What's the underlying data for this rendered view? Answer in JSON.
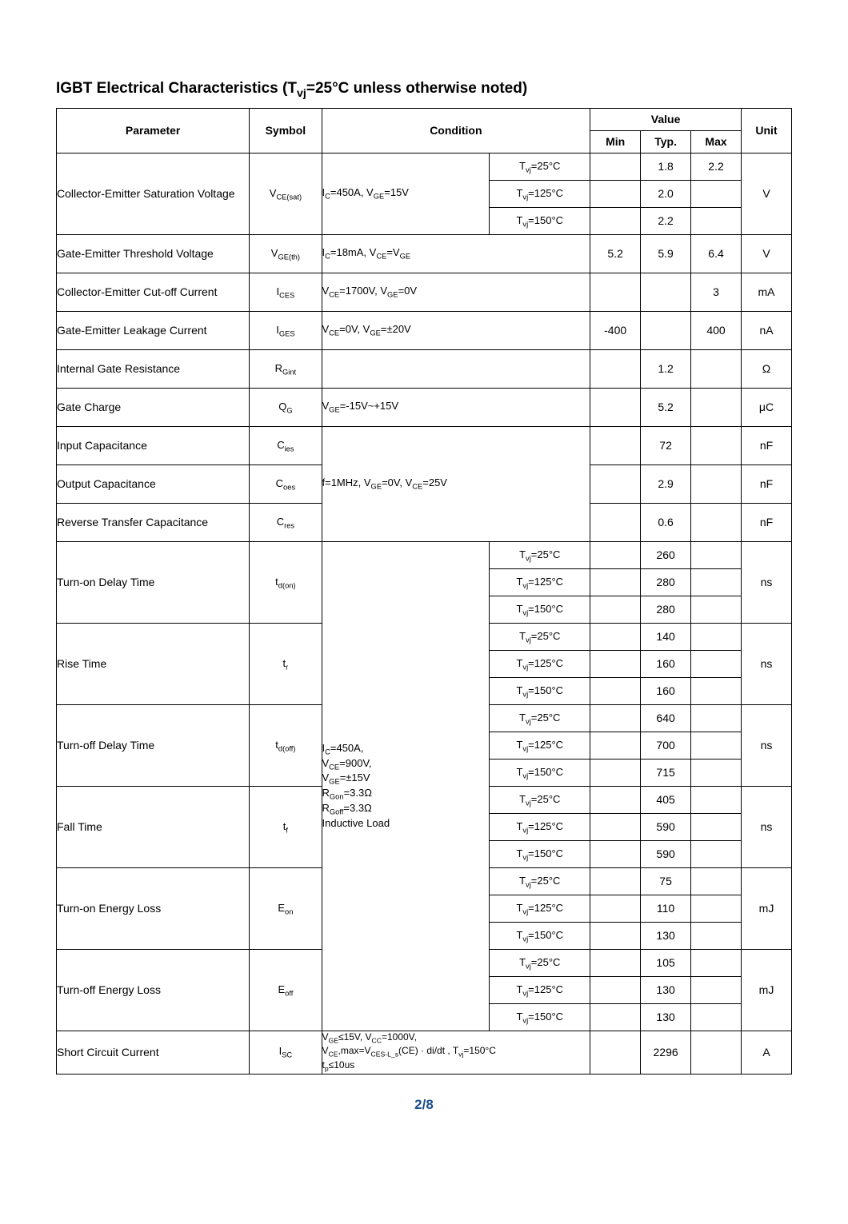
{
  "title_main": "IGBT Electrical Characteristics (T",
  "title_sub": "vj",
  "title_tail": "=25°C unless otherwise noted)",
  "headers": {
    "parameter": "Parameter",
    "symbol": "Symbol",
    "condition": "Condition",
    "value": "Value",
    "min": "Min",
    "typ": "Typ.",
    "max": "Max",
    "unit": "Unit"
  },
  "temps": {
    "t25": "=25°C",
    "t125": "=125°C",
    "t150": "=150°C",
    "tvj": "T",
    "tvjs": "vj"
  },
  "rows": {
    "vcesat": {
      "param": "Collector-Emitter Saturation Voltage",
      "sym_base": "V",
      "sym_sub": "CE(sat)",
      "cond": "I_C=450A, V_GE=15V",
      "v25_typ": "1.8",
      "v25_max": "2.2",
      "v125_typ": "2.0",
      "v150_typ": "2.2",
      "unit": "V"
    },
    "vgeth": {
      "param": "Gate-Emitter Threshold Voltage",
      "sym_base": "V",
      "sym_sub": "GE(th)",
      "cond": "I_C=18mA, V_CE=V_GE",
      "min": "5.2",
      "typ": "5.9",
      "max": "6.4",
      "unit": "V"
    },
    "ices": {
      "param": "Collector-Emitter Cut-off Current",
      "sym_base": "I",
      "sym_sub": "CES",
      "cond": "V_CE=1700V, V_GE=0V",
      "max": "3",
      "unit": "mA"
    },
    "iges": {
      "param": "Gate-Emitter Leakage Current",
      "sym_base": "I",
      "sym_sub": "GES",
      "cond": "V_CE=0V, V_GE=±20V",
      "min": "-400",
      "max": "400",
      "unit": "nA"
    },
    "rgint": {
      "param": "Internal Gate Resistance",
      "sym_base": "R",
      "sym_sub": "Gint",
      "typ": "1.2",
      "unit": "Ω"
    },
    "qg": {
      "param": "Gate Charge",
      "sym_base": "Q",
      "sym_sub": "G",
      "cond": "V_GE=-15V~+15V",
      "typ": "5.2",
      "unit": "μC"
    },
    "cies": {
      "param": "Input Capacitance",
      "sym_base": "C",
      "sym_sub": "ies",
      "typ": "72",
      "unit": "nF"
    },
    "coes": {
      "param": "Output Capacitance",
      "sym_base": "C",
      "sym_sub": "oes",
      "cond": "f=1MHz, V_GE=0V, V_CE=25V",
      "typ": "2.9",
      "unit": "nF"
    },
    "cres": {
      "param": "Reverse Transfer Capacitance",
      "sym_base": "C",
      "sym_sub": "res",
      "typ": "0.6",
      "unit": "nF"
    },
    "switch_cond_line1": "I_C=450A,",
    "switch_cond_line2": "V_CE=900V,",
    "switch_cond_line3": "V_GE=±15V",
    "switch_cond_line4": "R_Gon=3.3Ω",
    "switch_cond_line5": "R_Goff=3.3Ω",
    "switch_cond_line6": "Inductive Load",
    "tdon": {
      "param": "Turn-on Delay Time",
      "sym_base": "t",
      "sym_sub": "d(on)",
      "v25": "260",
      "v125": "280",
      "v150": "280",
      "unit": "ns"
    },
    "tr": {
      "param": "Rise Time",
      "sym_base": "t",
      "sym_sub": "r",
      "v25": "140",
      "v125": "160",
      "v150": "160",
      "unit": "ns"
    },
    "tdoff": {
      "param": "Turn-off Delay Time",
      "sym_base": "t",
      "sym_sub": "d(off)",
      "v25": "640",
      "v125": "700",
      "v150": "715",
      "unit": "ns"
    },
    "tf": {
      "param": "Fall Time",
      "sym_base": "t",
      "sym_sub": "f",
      "v25": "405",
      "v125": "590",
      "v150": "590",
      "unit": "ns"
    },
    "eon": {
      "param": "Turn-on Energy Loss",
      "sym_base": "E",
      "sym_sub": "on",
      "v25": "75",
      "v125": "110",
      "v150": "130",
      "unit": "mJ"
    },
    "eoff": {
      "param": "Turn-off Energy Loss",
      "sym_base": "E",
      "sym_sub": "off",
      "v25": "105",
      "v125": "130",
      "v150": "130",
      "unit": "mJ"
    },
    "isc": {
      "param": "Short Circuit Current",
      "sym_base": "I",
      "sym_sub": "SC",
      "cond_l1": "V_GE≤15V, V_CC=1000V,",
      "cond_l2": "V_CE,max=V_CES-L_s(CE) · di/dt ,  T_vj=150°C",
      "cond_l3": "t_p≤10us",
      "typ": "2296",
      "unit": "A"
    }
  },
  "footer": "2/8"
}
